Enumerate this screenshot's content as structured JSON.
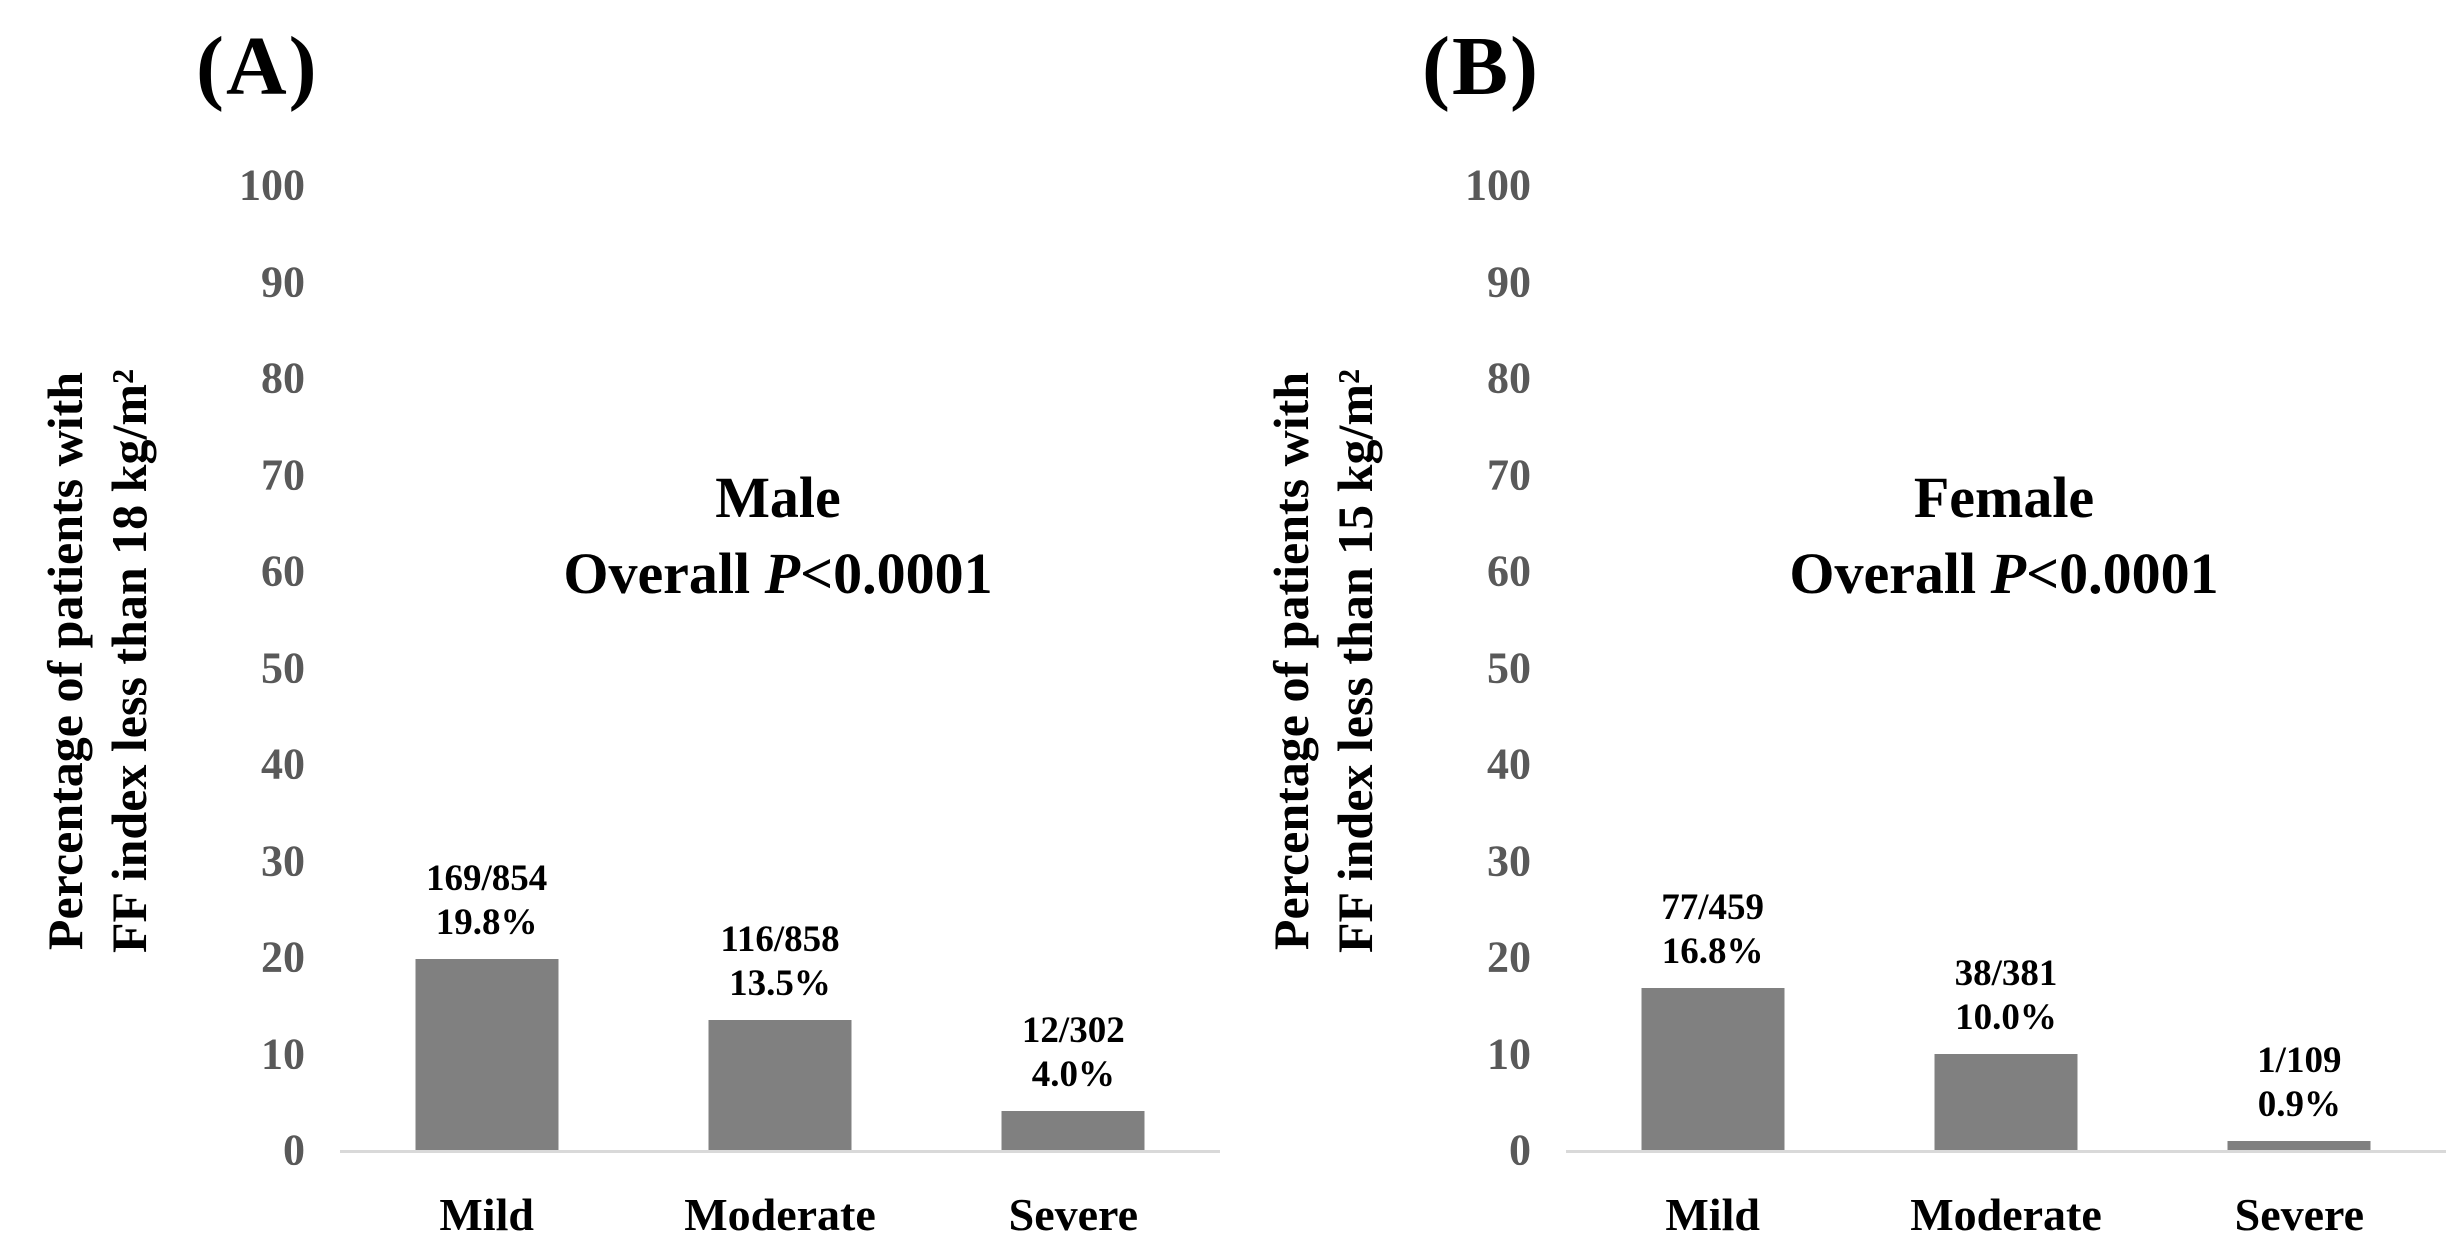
{
  "figure": {
    "colors": {
      "bar": "#808080",
      "axis": "#d9d9d9",
      "tick": "#595959",
      "text": "#000000",
      "background": "#ffffff"
    }
  },
  "panels": [
    {
      "letter": "(A)",
      "title": "Male",
      "subtitle_prefix": "Overall ",
      "subtitle_italic": "P",
      "subtitle_rest": "<0.0001",
      "ylabel_line1": "Percentage of patients with",
      "ylabel_line2": "FF index less than 18 kg/m²",
      "yticks": [
        "100",
        "90",
        "80",
        "70",
        "60",
        "50",
        "40",
        "30",
        "20",
        "10",
        "0"
      ],
      "bars": [
        {
          "label": "Mild",
          "count": "169/854",
          "pct": "19.8%",
          "value": 19.8
        },
        {
          "label": "Moderate",
          "count": "116/858",
          "pct": "13.5%",
          "value": 13.5
        },
        {
          "label": "Severe",
          "count": "12/302",
          "pct": "4.0%",
          "value": 4.0
        }
      ]
    },
    {
      "letter": "(B)",
      "title": "Female",
      "subtitle_prefix": "Overall ",
      "subtitle_italic": "P",
      "subtitle_rest": "<0.0001",
      "ylabel_line1": "Percentage of patients with",
      "ylabel_line2": "FF index less than 15 kg/m²",
      "yticks": [
        "100",
        "90",
        "80",
        "70",
        "60",
        "50",
        "40",
        "30",
        "20",
        "10",
        "0"
      ],
      "bars": [
        {
          "label": "Mild",
          "count": "77/459",
          "pct": "16.8%",
          "value": 16.8
        },
        {
          "label": "Moderate",
          "count": "38/381",
          "pct": "10.0%",
          "value": 10.0
        },
        {
          "label": "Severe",
          "count": "1/109",
          "pct": "0.9%",
          "value": 0.9
        }
      ]
    }
  ],
  "chart_data": [
    {
      "type": "bar",
      "panel": "A",
      "title": "Male",
      "subtitle": "Overall P<0.0001",
      "categories": [
        "Mild",
        "Moderate",
        "Severe"
      ],
      "values": [
        19.8,
        13.5,
        4.0
      ],
      "counts": [
        "169/854",
        "116/858",
        "12/302"
      ],
      "data_labels": [
        "169/854 19.8%",
        "116/858 13.5%",
        "12/302 4.0%"
      ],
      "xlabel": "",
      "ylabel": "Percentage of patients with FF index less than 18 kg/m²",
      "ylim": [
        0,
        100
      ],
      "ytick_step": 10,
      "grid": false,
      "legend": "none",
      "bar_color": "#808080"
    },
    {
      "type": "bar",
      "panel": "B",
      "title": "Female",
      "subtitle": "Overall P<0.0001",
      "categories": [
        "Mild",
        "Moderate",
        "Severe"
      ],
      "values": [
        16.8,
        10.0,
        0.9
      ],
      "counts": [
        "77/459",
        "38/381",
        "1/109"
      ],
      "data_labels": [
        "77/459 16.8%",
        "38/381 10.0%",
        "1/109 0.9%"
      ],
      "xlabel": "",
      "ylabel": "Percentage of patients with FF index less than 15 kg/m²",
      "ylim": [
        0,
        100
      ],
      "ytick_step": 10,
      "grid": false,
      "legend": "none",
      "bar_color": "#808080"
    }
  ]
}
